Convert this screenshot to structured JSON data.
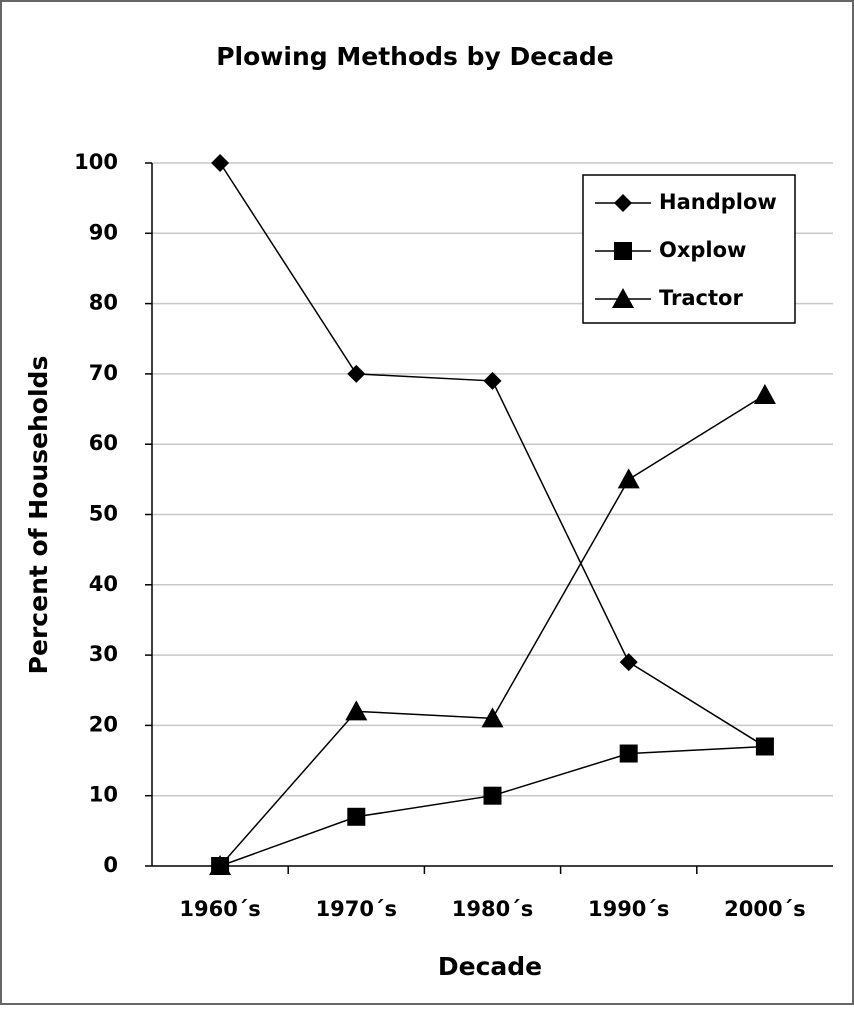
{
  "chart_data": {
    "type": "line",
    "title": "Plowing Methods by Decade",
    "xlabel": "Decade",
    "ylabel": "Percent of Households",
    "categories": [
      "1960´s",
      "1970´s",
      "1980´s",
      "1990´s",
      "2000´s"
    ],
    "series": [
      {
        "name": "Handplow",
        "color": "#000000",
        "marker": "diamond",
        "values": [
          100,
          70,
          69,
          29,
          17
        ]
      },
      {
        "name": "Oxplow",
        "color": "#000000",
        "marker": "square",
        "values": [
          0,
          7,
          10,
          16,
          17
        ]
      },
      {
        "name": "Tractor",
        "color": "#000000",
        "marker": "triangle",
        "values": [
          0,
          22,
          21,
          55,
          67
        ]
      }
    ],
    "ylim": [
      0,
      100
    ],
    "yticks": [
      0,
      10,
      20,
      30,
      40,
      50,
      60,
      70,
      80,
      90,
      100
    ],
    "grid": true,
    "legend": "upper right"
  }
}
